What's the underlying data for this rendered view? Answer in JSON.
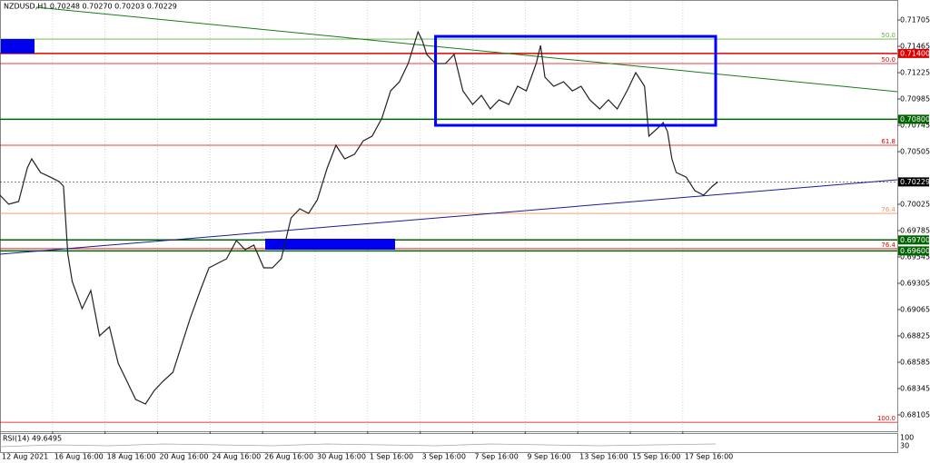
{
  "chart_data": {
    "type": "line",
    "title": "NZDUSD,H1  0.70248 0.70270 0.70203 0.70229",
    "x": [
      0,
      8,
      17,
      25,
      29,
      37,
      46,
      54,
      58,
      62,
      66,
      75,
      83,
      91,
      100,
      108,
      116,
      124,
      133,
      141,
      149,
      158,
      166,
      174,
      183,
      191,
      199,
      207,
      216,
      224,
      232,
      241,
      249,
      257,
      266,
      274,
      282,
      290,
      299,
      307,
      315,
      324,
      332,
      340,
      349,
      357,
      365,
      373,
      382,
      386,
      390,
      398,
      407,
      415,
      423,
      432,
      440,
      448,
      456,
      465,
      473,
      481,
      490,
      494,
      498,
      506,
      515,
      523,
      531,
      539,
      548,
      556,
      564,
      573,
      581,
      589,
      593,
      602,
      606,
      610,
      614,
      618,
      627,
      635,
      643,
      651,
      656
    ],
    "series": [
      {
        "name": "NZDUSD",
        "color": "#222222",
        "values": [
          0.70108,
          0.70025,
          0.7005,
          0.70356,
          0.70439,
          0.70315,
          0.70273,
          0.70232,
          0.7019,
          0.6957,
          0.69322,
          0.69073,
          0.69239,
          0.68825,
          0.68908,
          0.68577,
          0.68411,
          0.68246,
          0.68204,
          0.68328,
          0.68411,
          0.68494,
          0.68742,
          0.6899,
          0.69239,
          0.69446,
          0.69487,
          0.69528,
          0.69694,
          0.69611,
          0.69653,
          0.69446,
          0.69446,
          0.69528,
          0.69901,
          0.69984,
          0.69942,
          0.70066,
          0.70356,
          0.70563,
          0.70439,
          0.70481,
          0.70604,
          0.70646,
          0.70811,
          0.71059,
          0.71142,
          0.71308,
          0.71597,
          0.71515,
          0.71391,
          0.71308,
          0.71308,
          0.71391,
          0.71059,
          0.70935,
          0.71018,
          0.70894,
          0.70977,
          0.70935,
          0.71101,
          0.71059,
          0.71308,
          0.71473,
          0.71184,
          0.71101,
          0.71142,
          0.71059,
          0.71101,
          0.70977,
          0.70894,
          0.70977,
          0.70894,
          0.71059,
          0.71225,
          0.71101,
          0.70646,
          0.70728,
          0.7077,
          0.70687,
          0.70439,
          0.70315,
          0.70273,
          0.70149,
          0.70108,
          0.7019,
          0.70229
        ]
      }
    ],
    "xlim": [
      0,
      820
    ],
    "ylim": [
      0.67956,
      0.71871
    ],
    "xticks": [
      {
        "value": 0,
        "label": "12 Aug 2021"
      },
      {
        "value": 48,
        "label": "16 Aug 16:00"
      },
      {
        "value": 96,
        "label": "18 Aug 16:00"
      },
      {
        "value": 144,
        "label": "20 Aug 16:00"
      },
      {
        "value": 192,
        "label": "24 Aug 16:00"
      },
      {
        "value": 240,
        "label": "26 Aug 16:00"
      },
      {
        "value": 288,
        "label": "30 Aug 16:00"
      },
      {
        "value": 336,
        "label": "1 Sep 16:00"
      },
      {
        "value": 384,
        "label": "3 Sep 16:00"
      },
      {
        "value": 432,
        "label": "7 Sep 16:00"
      },
      {
        "value": 480,
        "label": "9 Sep 16:00"
      },
      {
        "value": 528,
        "label": "13 Sep 16:00"
      },
      {
        "value": 576,
        "label": "15 Sep 16:00"
      },
      {
        "value": 624,
        "label": "17 Sep 16:00"
      }
    ],
    "yticks": [
      0.71705,
      0.71465,
      0.71225,
      0.70985,
      0.70745,
      0.70505,
      0.70025,
      0.69785,
      0.69545,
      0.69305,
      0.69065,
      0.68825,
      0.68585,
      0.68345,
      0.68105
    ],
    "grid": true,
    "price_levels": [
      {
        "value": 0.714,
        "label": "0.71400",
        "color": "#e00000"
      },
      {
        "value": 0.708,
        "label": "0.70800",
        "color": "#006400"
      },
      {
        "value": 0.697,
        "label": "0.69700",
        "color": "#006400"
      },
      {
        "value": 0.696,
        "label": "0.69600",
        "color": "#006400"
      },
      {
        "value": 0.70229,
        "label": "0.70229",
        "color": "#000000"
      }
    ],
    "fib_levels": [
      {
        "value": 0.71531,
        "label": "50.0",
        "color": "#60b040"
      },
      {
        "value": 0.71308,
        "label": "50.0",
        "color": "#e00000"
      },
      {
        "value": 0.70563,
        "label": "61.8",
        "color": "#e00000"
      },
      {
        "value": 0.69942,
        "label": "76.4",
        "color": "#f09060"
      },
      {
        "value": 0.6962,
        "label": "76.4",
        "color": "#e00000"
      },
      {
        "value": 0.68038,
        "label": "100.0",
        "color": "#e00000"
      }
    ],
    "range_box": {
      "x": [
        398,
        654
      ],
      "y": [
        0.70745,
        0.71556
      ],
      "color": "#0000ff"
    },
    "indicator": {
      "label": "RSI(14) 49.6495",
      "axis_labels": [
        "100",
        "30"
      ]
    }
  }
}
